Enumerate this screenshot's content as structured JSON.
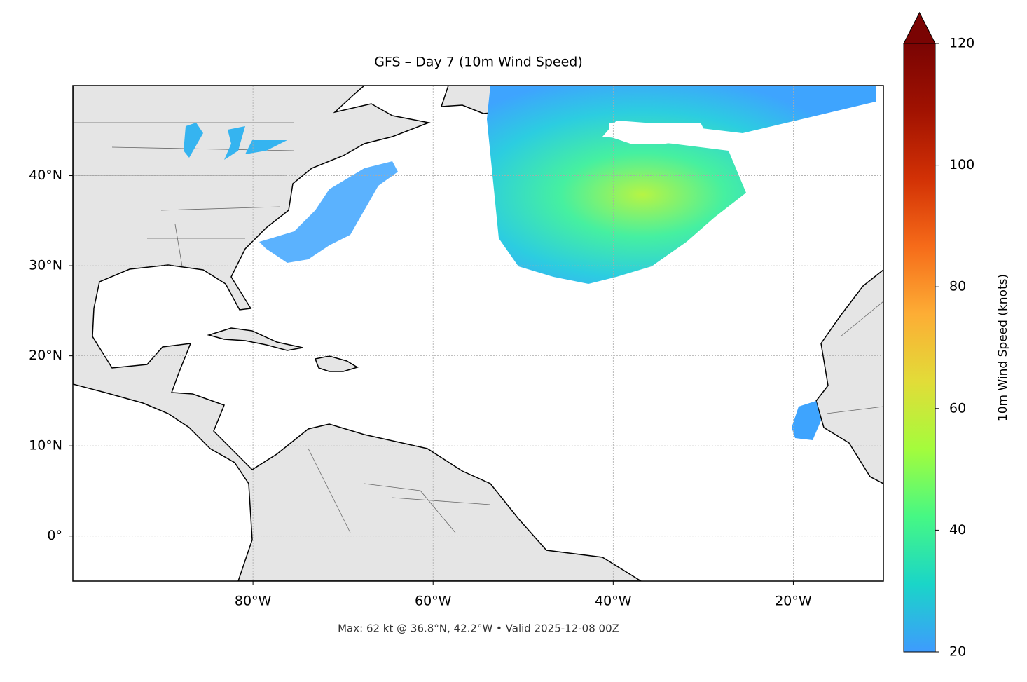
{
  "chart_data": {
    "type": "map",
    "title": "GFS – Day 7 (10m Wind Speed)",
    "note": "Max: 62 kt @ 36.8°N, 42.2°W • Valid 2025-12-08 00Z",
    "xlim": [
      -100,
      -10
    ],
    "ylim": [
      -5,
      50
    ],
    "xticks": [
      {
        "value": -80,
        "label": "80°W"
      },
      {
        "value": -60,
        "label": "60°W"
      },
      {
        "value": -40,
        "label": "40°W"
      },
      {
        "value": -20,
        "label": "20°W"
      }
    ],
    "yticks": [
      {
        "value": 0,
        "label": "0°"
      },
      {
        "value": 10,
        "label": "10°N"
      },
      {
        "value": 20,
        "label": "20°N"
      },
      {
        "value": 30,
        "label": "30°N"
      },
      {
        "value": 40,
        "label": "40°N"
      }
    ],
    "grid": true,
    "colorbar": {
      "label": "10m Wind Speed (knots)",
      "lim": [
        20,
        120
      ],
      "ticks": [
        20,
        40,
        60,
        80,
        100,
        120
      ],
      "colors": [
        "#3e9bfe",
        "#1ad5c8",
        "#46f884",
        "#a4fc3c",
        "#e2dc38",
        "#fdad35",
        "#f66b19",
        "#d23105",
        "#a11201",
        "#7a0403"
      ]
    }
  }
}
